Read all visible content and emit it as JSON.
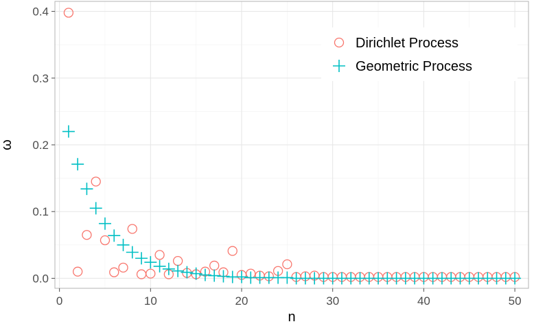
{
  "chart_data": {
    "type": "scatter",
    "xlabel": "n",
    "ylabel": "ω",
    "xlim": [
      -0.5,
      51.5
    ],
    "ylim": [
      -0.015,
      0.415
    ],
    "xticks": [
      0,
      10,
      20,
      30,
      40,
      50
    ],
    "xtick_labels": [
      "0",
      "10",
      "20",
      "30",
      "40",
      "50"
    ],
    "yticks": [
      0.0,
      0.1,
      0.2,
      0.3,
      0.4
    ],
    "ytick_labels": [
      "0.0",
      "0.1",
      "0.2",
      "0.3",
      "0.4"
    ],
    "grid": true,
    "legend_position": "top-right",
    "x": [
      1,
      2,
      3,
      4,
      5,
      6,
      7,
      8,
      9,
      10,
      11,
      12,
      13,
      14,
      15,
      16,
      17,
      18,
      19,
      20,
      21,
      22,
      23,
      24,
      25,
      26,
      27,
      28,
      29,
      30,
      31,
      32,
      33,
      34,
      35,
      36,
      37,
      38,
      39,
      40,
      41,
      42,
      43,
      44,
      45,
      46,
      47,
      48,
      49,
      50
    ],
    "series": [
      {
        "name": "Dirichlet Process",
        "marker": "open-circle",
        "color": "#F8766D",
        "values": [
          0.398,
          0.01,
          0.065,
          0.145,
          0.057,
          0.009,
          0.016,
          0.074,
          0.006,
          0.007,
          0.035,
          0.006,
          0.026,
          0.008,
          0.006,
          0.01,
          0.019,
          0.009,
          0.041,
          0.005,
          0.007,
          0.004,
          0.003,
          0.011,
          0.021,
          0.002,
          0.003,
          0.004,
          0.002,
          0.002,
          0.002,
          0.002,
          0.002,
          0.002,
          0.002,
          0.002,
          0.002,
          0.002,
          0.002,
          0.002,
          0.002,
          0.002,
          0.002,
          0.002,
          0.002,
          0.002,
          0.002,
          0.002,
          0.002,
          0.002
        ]
      },
      {
        "name": "Geometric Process",
        "marker": "plus",
        "color": "#00BFC4",
        "values": [
          0.22,
          0.171,
          0.134,
          0.105,
          0.082,
          0.064,
          0.05,
          0.039,
          0.03,
          0.024,
          0.018,
          0.014,
          0.011,
          0.009,
          0.007,
          0.005,
          0.004,
          0.003,
          0.002,
          0.002,
          0.001,
          0.001,
          0.001,
          0.001,
          0.001,
          0.0,
          0.0,
          0.0,
          0.0,
          0.0,
          0.0,
          0.0,
          0.0,
          0.0,
          0.0,
          0.0,
          0.0,
          0.0,
          0.0,
          0.0,
          0.0,
          0.0,
          0.0,
          0.0,
          0.0,
          0.0,
          0.0,
          0.0,
          0.0,
          0.0
        ]
      }
    ]
  }
}
